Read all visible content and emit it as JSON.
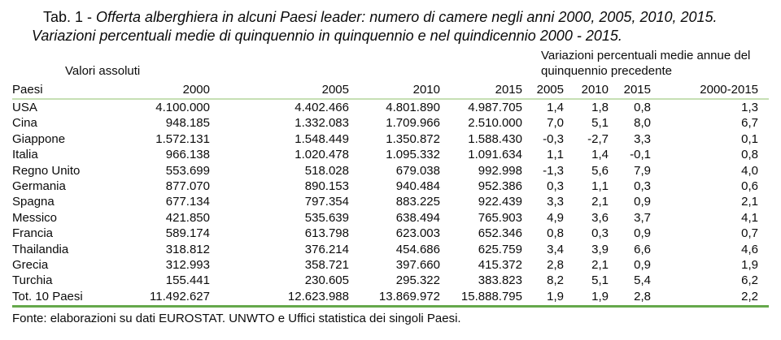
{
  "title": {
    "prefix": "Tab. 1 - ",
    "line1_italic": "Offerta alberghiera in alcuni Paesi leader: numero di camere negli anni 2000, 2005, 2010, 2015.",
    "line2_italic": "Variazioni percentuali medie di quinquennio in quinquennio e nel quindicennio 2000 - 2015."
  },
  "table": {
    "group_headers": {
      "valori_assoluti": "Valori assoluti",
      "variazioni_line1": "Variazioni percentuali medie annue del",
      "variazioni_line2": "quinquennio precedente"
    },
    "columns": [
      "Paesi",
      "2000",
      "2005",
      "2010",
      "2015",
      "2005",
      "2010",
      "2015",
      "2000-2015"
    ],
    "rows": [
      {
        "paese": "USA",
        "cells": [
          "4.100.000",
          "4.402.466",
          "4.801.890",
          "4.987.705",
          "1,4",
          "1,8",
          "0,8",
          "1,3"
        ]
      },
      {
        "paese": "Cina",
        "cells": [
          "948.185",
          "1.332.083",
          "1.709.966",
          "2.510.000",
          "7,0",
          "5,1",
          "8,0",
          "6,7"
        ]
      },
      {
        "paese": "Giappone",
        "cells": [
          "1.572.131",
          "1.548.449",
          "1.350.872",
          "1.588.430",
          "-0,3",
          "-2,7",
          "3,3",
          "0,1"
        ]
      },
      {
        "paese": "Italia",
        "cells": [
          "966.138",
          "1.020.478",
          "1.095.332",
          "1.091.634",
          "1,1",
          "1,4",
          "-0,1",
          "0,8"
        ]
      },
      {
        "paese": "Regno Unito",
        "cells": [
          "553.699",
          "518.028",
          "679.038",
          "992.998",
          "-1,3",
          "5,6",
          "7,9",
          "4,0"
        ]
      },
      {
        "paese": "Germania",
        "cells": [
          "877.070",
          "890.153",
          "940.484",
          "952.386",
          "0,3",
          "1,1",
          "0,3",
          "0,6"
        ]
      },
      {
        "paese": "Spagna",
        "cells": [
          "677.134",
          "797.354",
          "883.225",
          "922.439",
          "3,3",
          "2,1",
          "0,9",
          "2,1"
        ]
      },
      {
        "paese": "Messico",
        "cells": [
          "421.850",
          "535.639",
          "638.494",
          "765.903",
          "4,9",
          "3,6",
          "3,7",
          "4,1"
        ]
      },
      {
        "paese": "Francia",
        "cells": [
          "589.174",
          "613.798",
          "623.003",
          "652.346",
          "0,8",
          "0,3",
          "0,9",
          "0,7"
        ]
      },
      {
        "paese": "Thailandia",
        "cells": [
          "318.812",
          "376.214",
          "454.686",
          "625.759",
          "3,4",
          "3,9",
          "6,6",
          "4,6"
        ]
      },
      {
        "paese": "Grecia",
        "cells": [
          "312.993",
          "358.721",
          "397.660",
          "415.372",
          "2,8",
          "2,1",
          "0,9",
          "1,9"
        ]
      },
      {
        "paese": "Turchia",
        "cells": [
          "155.441",
          "230.605",
          "295.322",
          "383.823",
          "8,2",
          "5,1",
          "5,4",
          "6,2"
        ]
      },
      {
        "paese": "Tot. 10 Paesi",
        "cells": [
          "11.492.627",
          "12.623.988",
          "13.869.972",
          "15.888.795",
          "1,9",
          "1,9",
          "2,8",
          "2,2"
        ]
      }
    ]
  },
  "source": "Fonte: elaborazioni su dati EUROSTAT. UNWTO e Uffici statistica dei singoli Paesi.",
  "colors": {
    "line_light": "#c6dfb4",
    "line_dark": "#65a84b"
  }
}
